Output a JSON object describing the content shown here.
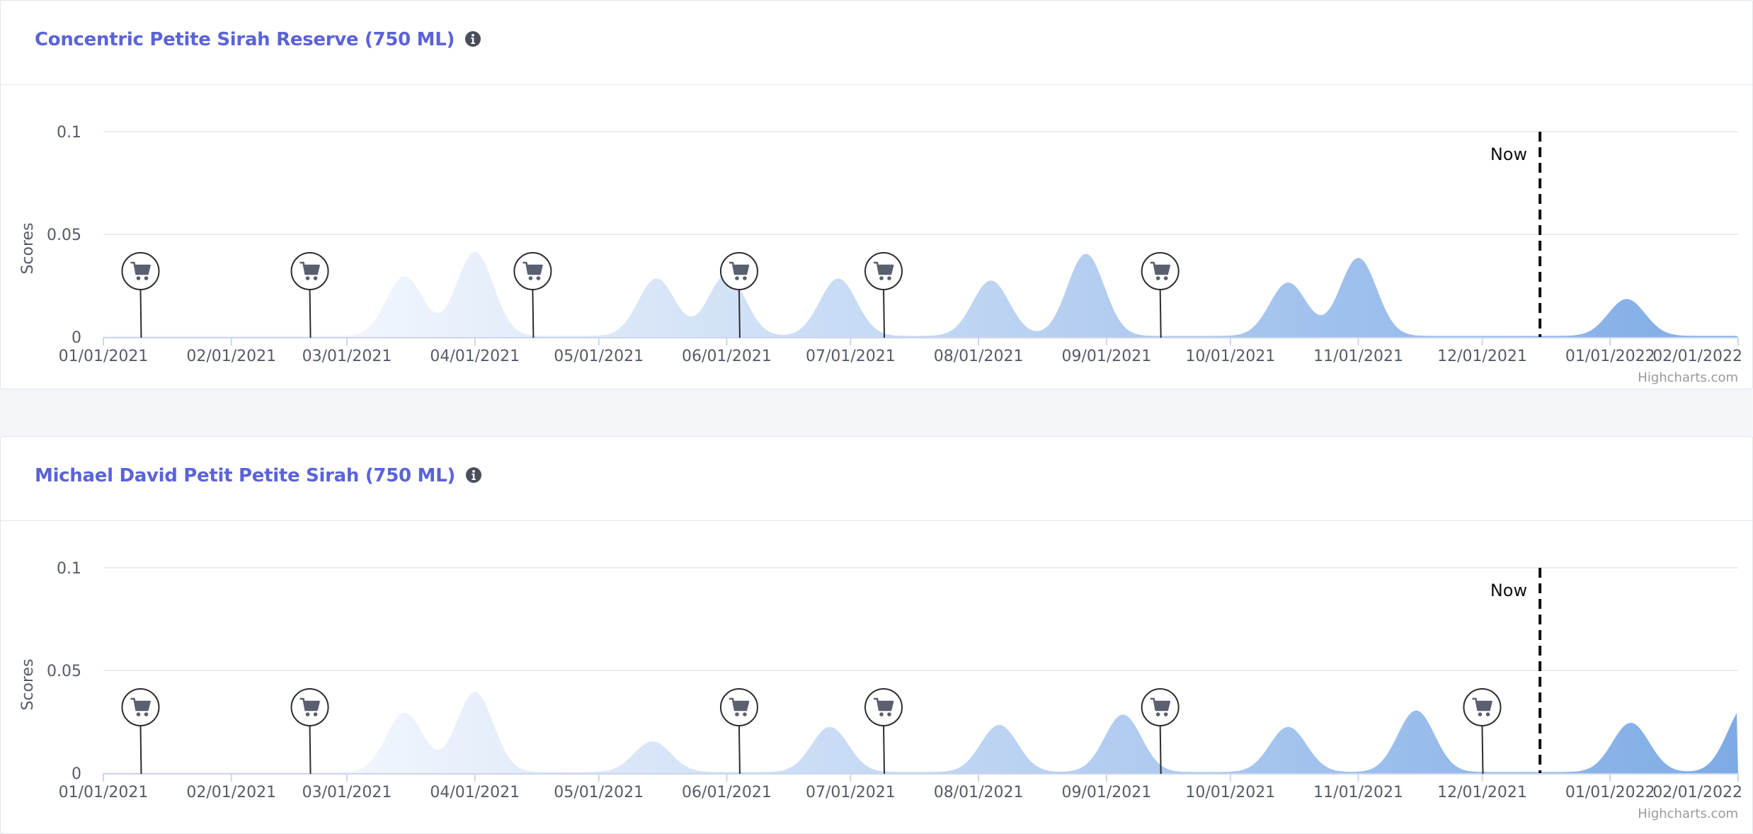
{
  "colors": {
    "title": "#5a63d8",
    "area_light": "#f2f6fd",
    "area_dark": "#7eabe6",
    "marker": "#5a5f70",
    "grid": "#e6e6e6",
    "now_line": "#111111"
  },
  "icons": {
    "info": "info-circle-icon",
    "cart": "shopping-cart-icon"
  },
  "cards": [
    {
      "title": "Concentric Petite Sirah Reserve (750 ML)",
      "chart_data": {
        "type": "area",
        "xlabel": "",
        "ylabel": "Scores",
        "ylim": [
          0,
          0.1
        ],
        "yticks": [
          0,
          0.05,
          0.1
        ],
        "ytick_labels": [
          "0",
          "0.05",
          "0.1"
        ],
        "xlim": [
          "2021-01-01",
          "2022-02-01"
        ],
        "xtick_labels": [
          "01/01/2021",
          "02/01/2021",
          "03/01/2021",
          "04/01/2021",
          "05/01/2021",
          "06/01/2021",
          "07/01/2021",
          "08/01/2021",
          "09/01/2021",
          "10/01/2021",
          "11/01/2021",
          "12/01/2021",
          "01/01/2022",
          "02/01/2022"
        ],
        "grid": true,
        "legend": "none",
        "now_marker": {
          "label": "Now",
          "date": "2021-12-15"
        },
        "purchase_markers": [
          "2021-01-10",
          "2021-02-20",
          "2021-04-15",
          "2021-06-04",
          "2021-07-09",
          "2021-09-14"
        ],
        "peaks": [
          {
            "date": "2021-03-15",
            "value": 0.029
          },
          {
            "date": "2021-04-01",
            "value": 0.041
          },
          {
            "date": "2021-05-15",
            "value": 0.028
          },
          {
            "date": "2021-06-01",
            "value": 0.03
          },
          {
            "date": "2021-06-28",
            "value": 0.028
          },
          {
            "date": "2021-08-04",
            "value": 0.027
          },
          {
            "date": "2021-08-27",
            "value": 0.04
          },
          {
            "date": "2021-10-15",
            "value": 0.026
          },
          {
            "date": "2021-11-01",
            "value": 0.038
          },
          {
            "date": "2022-01-05",
            "value": 0.018
          }
        ],
        "credit": "Highcharts.com"
      }
    },
    {
      "title": "Michael David Petit Petite Sirah (750 ML)",
      "chart_data": {
        "type": "area",
        "xlabel": "",
        "ylabel": "Scores",
        "ylim": [
          0,
          0.1
        ],
        "yticks": [
          0,
          0.05,
          0.1
        ],
        "ytick_labels": [
          "0",
          "0.05",
          "0.1"
        ],
        "xlim": [
          "2021-01-01",
          "2022-02-01"
        ],
        "xtick_labels": [
          "01/01/2021",
          "02/01/2021",
          "03/01/2021",
          "04/01/2021",
          "05/01/2021",
          "06/01/2021",
          "07/01/2021",
          "08/01/2021",
          "09/01/2021",
          "10/01/2021",
          "11/01/2021",
          "12/01/2021",
          "01/01/2022",
          "02/01/2022"
        ],
        "grid": true,
        "legend": "none",
        "now_marker": {
          "label": "Now",
          "date": "2021-12-15"
        },
        "purchase_markers": [
          "2021-01-10",
          "2021-02-20",
          "2021-06-04",
          "2021-07-09",
          "2021-09-14",
          "2021-12-01"
        ],
        "peaks": [
          {
            "date": "2021-03-15",
            "value": 0.029
          },
          {
            "date": "2021-04-01",
            "value": 0.039
          },
          {
            "date": "2021-05-14",
            "value": 0.015
          },
          {
            "date": "2021-06-26",
            "value": 0.022
          },
          {
            "date": "2021-08-06",
            "value": 0.023
          },
          {
            "date": "2021-09-05",
            "value": 0.028
          },
          {
            "date": "2021-10-15",
            "value": 0.022
          },
          {
            "date": "2021-11-15",
            "value": 0.03
          },
          {
            "date": "2022-01-06",
            "value": 0.024
          },
          {
            "date": "2022-02-03",
            "value": 0.033
          }
        ],
        "credit": "Highcharts.com"
      }
    }
  ]
}
